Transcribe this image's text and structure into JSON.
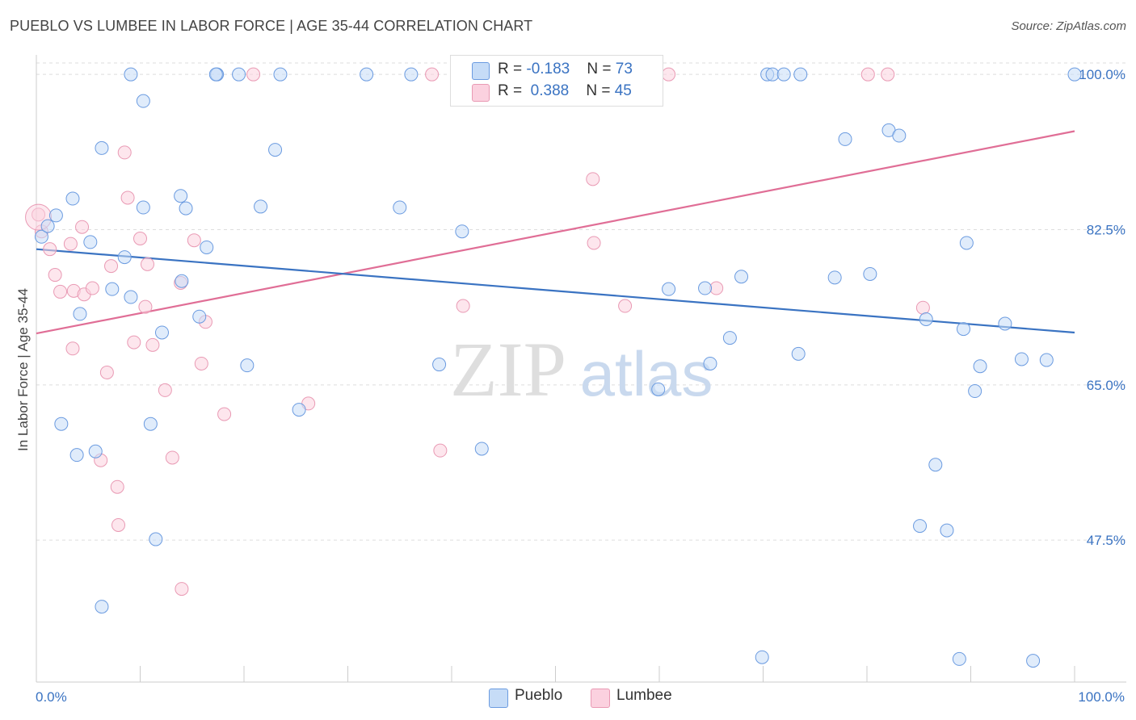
{
  "header": {
    "title": "PUEBLO VS LUMBEE IN LABOR FORCE | AGE 35-44 CORRELATION CHART",
    "source": "Source: ZipAtlas.com"
  },
  "watermark": {
    "zip": "ZIP",
    "atlas": "atlas"
  },
  "legend": {
    "pueblo": {
      "r_label": "R = ",
      "r_value": "-0.183",
      "n_label": "N = ",
      "n_value": "73"
    },
    "lumbee": {
      "r_label": "R = ",
      "r_value": "0.388",
      "n_label": "N = ",
      "n_value": "45"
    }
  },
  "colors": {
    "pueblo_fill": "#c6dcf7",
    "pueblo_stroke": "#6b9be0",
    "pueblo_line": "#3a73c2",
    "lumbee_fill": "#fbd1df",
    "lumbee_stroke": "#e99ab4",
    "lumbee_line": "#e06e96",
    "axis_text": "#3a73c2",
    "grid": "#dddddd"
  },
  "chart_data": {
    "type": "scatter",
    "title": "PUEBLO VS LUMBEE IN LABOR FORCE | AGE 35-44 CORRELATION CHART",
    "xlabel": "",
    "ylabel": "In Labor Force | Age 35-44",
    "xlim": [
      0,
      100
    ],
    "ylim": [
      31.5,
      102.2
    ],
    "x_tick_labels": [
      {
        "x": 0,
        "label": "0.0%"
      },
      {
        "x": 100,
        "label": "100.0%"
      }
    ],
    "y_ticks": [
      47.5,
      65.0,
      82.5,
      100.0
    ],
    "y_tick_labels": [
      "47.5%",
      "65.0%",
      "82.5%",
      "100.0%"
    ],
    "grid": true,
    "legend_position": "top-center",
    "series": [
      {
        "name": "Pueblo",
        "R": -0.183,
        "N": 73,
        "trend": [
          [
            0,
            80.3
          ],
          [
            100,
            70.9
          ]
        ],
        "points": [
          [
            0.5,
            81.7
          ],
          [
            1.1,
            82.9
          ],
          [
            1.9,
            84.1
          ],
          [
            3.5,
            86.0
          ],
          [
            4.2,
            73.0
          ],
          [
            5.2,
            81.1
          ],
          [
            5.7,
            57.5
          ],
          [
            2.4,
            60.6
          ],
          [
            3.9,
            57.1
          ],
          [
            6.3,
            40.0
          ],
          [
            6.3,
            91.7
          ],
          [
            7.3,
            75.8
          ],
          [
            8.5,
            79.4
          ],
          [
            9.1,
            74.9
          ],
          [
            9.1,
            100.0
          ],
          [
            10.3,
            85.0
          ],
          [
            10.3,
            97.0
          ],
          [
            11.0,
            60.6
          ],
          [
            11.5,
            47.6
          ],
          [
            12.1,
            70.9
          ],
          [
            13.9,
            86.3
          ],
          [
            14.0,
            76.7
          ],
          [
            14.4,
            84.9
          ],
          [
            15.7,
            72.7
          ],
          [
            16.4,
            80.5
          ],
          [
            17.4,
            100.0
          ],
          [
            17.3,
            100.0
          ],
          [
            19.5,
            100.0
          ],
          [
            20.3,
            67.2
          ],
          [
            21.6,
            85.1
          ],
          [
            23.0,
            91.5
          ],
          [
            23.5,
            100.0
          ],
          [
            25.3,
            62.2
          ],
          [
            31.8,
            100.0
          ],
          [
            35.0,
            85.0
          ],
          [
            36.1,
            100.0
          ],
          [
            38.8,
            67.3
          ],
          [
            41.0,
            82.3
          ],
          [
            42.9,
            57.8
          ],
          [
            45.0,
            100.0
          ],
          [
            59.9,
            64.5
          ],
          [
            60.9,
            75.8
          ],
          [
            64.4,
            75.9
          ],
          [
            64.9,
            67.4
          ],
          [
            66.8,
            70.3
          ],
          [
            67.9,
            77.2
          ],
          [
            69.9,
            34.3
          ],
          [
            70.4,
            100.0
          ],
          [
            70.9,
            100.0
          ],
          [
            72.0,
            100.0
          ],
          [
            73.4,
            68.5
          ],
          [
            73.6,
            100.0
          ],
          [
            76.9,
            77.1
          ],
          [
            77.9,
            92.7
          ],
          [
            80.3,
            77.5
          ],
          [
            82.1,
            93.7
          ],
          [
            83.1,
            93.1
          ],
          [
            85.1,
            49.1
          ],
          [
            85.7,
            72.4
          ],
          [
            86.6,
            56.0
          ],
          [
            87.7,
            48.6
          ],
          [
            88.9,
            34.1
          ],
          [
            89.3,
            71.3
          ],
          [
            89.6,
            81.0
          ],
          [
            90.4,
            64.3
          ],
          [
            90.9,
            67.1
          ],
          [
            93.3,
            71.9
          ],
          [
            94.9,
            67.9
          ],
          [
            96.0,
            33.9
          ],
          [
            97.3,
            67.8
          ],
          [
            100.0,
            100.0
          ]
        ]
      },
      {
        "name": "Lumbee",
        "R": 0.388,
        "N": 45,
        "trend": [
          [
            0,
            70.8
          ],
          [
            100,
            93.6
          ]
        ],
        "points": [
          [
            0.2,
            84.2
          ],
          [
            0.5,
            82.3
          ],
          [
            1.3,
            80.3
          ],
          [
            1.8,
            77.4
          ],
          [
            2.3,
            75.5
          ],
          [
            3.3,
            80.9
          ],
          [
            3.5,
            69.1
          ],
          [
            3.6,
            75.6
          ],
          [
            4.4,
            82.8
          ],
          [
            4.6,
            75.2
          ],
          [
            5.4,
            75.9
          ],
          [
            6.2,
            56.5
          ],
          [
            6.8,
            66.4
          ],
          [
            7.2,
            78.4
          ],
          [
            7.8,
            53.5
          ],
          [
            7.9,
            49.2
          ],
          [
            8.5,
            91.2
          ],
          [
            8.8,
            86.1
          ],
          [
            9.4,
            69.8
          ],
          [
            10.0,
            81.5
          ],
          [
            10.5,
            73.8
          ],
          [
            10.7,
            78.6
          ],
          [
            11.2,
            69.5
          ],
          [
            12.4,
            64.4
          ],
          [
            13.1,
            56.8
          ],
          [
            13.9,
            76.5
          ],
          [
            14.0,
            42.0
          ],
          [
            15.2,
            81.3
          ],
          [
            15.9,
            67.4
          ],
          [
            16.3,
            72.1
          ],
          [
            18.1,
            61.7
          ],
          [
            20.9,
            100.0
          ],
          [
            26.2,
            62.9
          ],
          [
            38.1,
            100.0
          ],
          [
            38.9,
            57.6
          ],
          [
            41.1,
            73.9
          ],
          [
            53.6,
            88.2
          ],
          [
            53.7,
            81.0
          ],
          [
            56.7,
            73.9
          ],
          [
            60.9,
            100.0
          ],
          [
            65.5,
            75.9
          ],
          [
            80.1,
            100.0
          ],
          [
            82.0,
            100.0
          ],
          [
            85.4,
            73.7
          ]
        ]
      }
    ]
  },
  "bottom_legend": [
    "Pueblo",
    "Lumbee"
  ]
}
